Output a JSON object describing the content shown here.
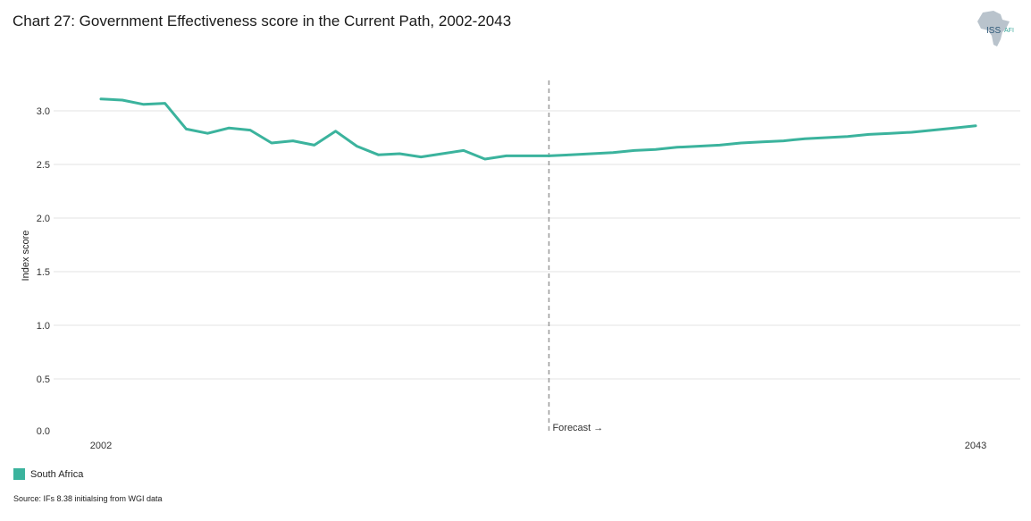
{
  "title": "Chart 27: Government Effectiveness score in the Current Path, 2002-2043",
  "logo": {
    "text": "ISS",
    "sub": "AFI"
  },
  "source": "Source: IFs 8.38 initialsing from WGI data",
  "colors": {
    "series": "#3bb39d",
    "grid": "#e3e3e3",
    "forecast_line": "#9a9a9a"
  },
  "chart_data": {
    "type": "line",
    "title": "Chart 27: Government Effectiveness score in the Current Path, 2002-2043",
    "xlabel": "",
    "ylabel": "Index score",
    "xlim": [
      2002,
      2043
    ],
    "ylim": [
      0,
      3.3
    ],
    "y_ticks": [
      0.0,
      0.5,
      1.0,
      1.5,
      2.0,
      2.5,
      3.0
    ],
    "y_tick_labels": [
      "0.0",
      "0.5",
      "1.0",
      "1.5",
      "2.0",
      "2.5",
      "3.0"
    ],
    "x_tick_labels": [
      {
        "x": 2002,
        "label": "2002"
      },
      {
        "x": 2043,
        "label": "2043"
      }
    ],
    "grid": true,
    "legend_position": "bottom-left",
    "forecast": {
      "x": 2023,
      "label": "Forecast →"
    },
    "series": [
      {
        "name": "South Africa",
        "x": [
          2002,
          2003,
          2004,
          2005,
          2006,
          2007,
          2008,
          2009,
          2010,
          2011,
          2012,
          2013,
          2014,
          2015,
          2016,
          2017,
          2018,
          2019,
          2020,
          2021,
          2022,
          2023,
          2024,
          2025,
          2026,
          2027,
          2028,
          2029,
          2030,
          2031,
          2032,
          2033,
          2034,
          2035,
          2036,
          2037,
          2038,
          2039,
          2040,
          2041,
          2042,
          2043
        ],
        "values": [
          3.11,
          3.1,
          3.06,
          3.07,
          2.83,
          2.79,
          2.84,
          2.82,
          2.7,
          2.72,
          2.68,
          2.81,
          2.67,
          2.59,
          2.6,
          2.57,
          2.6,
          2.63,
          2.55,
          2.58,
          2.58,
          2.58,
          2.59,
          2.6,
          2.61,
          2.63,
          2.64,
          2.66,
          2.67,
          2.68,
          2.7,
          2.71,
          2.72,
          2.74,
          2.75,
          2.76,
          2.78,
          2.79,
          2.8,
          2.82,
          2.84,
          2.86
        ]
      }
    ]
  }
}
